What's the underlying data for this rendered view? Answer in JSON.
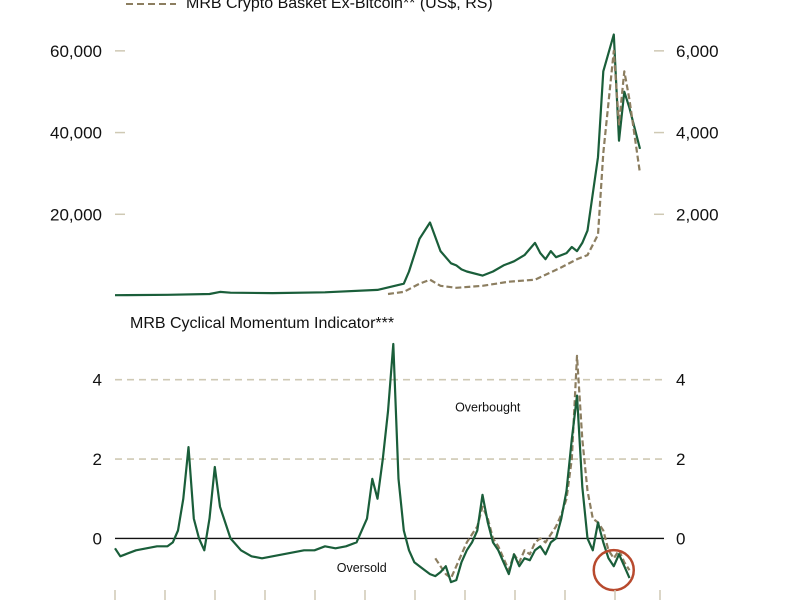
{
  "colors": {
    "bitcoin": "#1a5e3a",
    "basket": "#8c7e60",
    "gridline": "#cfc9b4",
    "zero_line": "#111111",
    "circle": "#b84a2e",
    "tick_mark": "#cfc9b4"
  },
  "chart_data": [
    {
      "type": "line",
      "panel": "top",
      "title": "",
      "legend_entries": [
        {
          "series": "basket",
          "label": "MRB Crypto Basket Ex-Bitcoin** (US$, RS)",
          "style": "dashed"
        }
      ],
      "left_axis": {
        "ylim": [
          0,
          70000
        ],
        "ticks": [
          20000,
          40000,
          60000
        ],
        "tick_labels": [
          "20,000",
          "40,000",
          "60,000"
        ]
      },
      "right_axis": {
        "ylim": [
          0,
          7000
        ],
        "ticks": [
          2000,
          4000,
          6000
        ],
        "tick_labels": [
          "2,000",
          "4,000",
          "6,000"
        ]
      },
      "xlim": [
        0,
        100
      ],
      "series": [
        {
          "key": "bitcoin",
          "axis": "left",
          "style": "solid",
          "x": [
            0,
            10,
            18,
            20,
            22,
            30,
            40,
            50,
            55,
            56,
            58,
            60,
            62,
            64,
            65,
            66,
            67,
            70,
            72,
            74,
            76,
            78,
            80,
            81,
            82,
            83,
            84,
            86,
            87,
            88,
            89,
            90,
            92,
            93,
            95,
            96,
            97,
            98,
            100
          ],
          "y": [
            200,
            300,
            500,
            1000,
            800,
            700,
            900,
            1500,
            3000,
            6000,
            14000,
            18000,
            11000,
            8000,
            7500,
            6500,
            6000,
            5000,
            6000,
            7500,
            8500,
            10000,
            13000,
            10500,
            9000,
            11000,
            9500,
            10500,
            12000,
            11000,
            13000,
            16000,
            34000,
            55000,
            64000,
            38000,
            50000,
            46000,
            36000
          ]
        },
        {
          "key": "basket",
          "axis": "right",
          "style": "dashed",
          "x": [
            52,
            55,
            58,
            60,
            62,
            65,
            70,
            75,
            80,
            85,
            88,
            90,
            92,
            93,
            95,
            96,
            97,
            98,
            100
          ],
          "y": [
            50,
            100,
            300,
            400,
            250,
            200,
            250,
            350,
            400,
            700,
            900,
            1000,
            1500,
            3500,
            6000,
            4200,
            5500,
            4800,
            3000
          ]
        }
      ]
    },
    {
      "type": "line",
      "panel": "bottom",
      "title": "MRB Cyclical Momentum Indicator***",
      "left_axis": {
        "ylim": [
          -1.3,
          5.0
        ],
        "ticks": [
          0,
          2,
          4
        ],
        "tick_labels": [
          "0",
          "2",
          "4"
        ]
      },
      "right_axis": {
        "ylim": [
          -1.3,
          5.0
        ],
        "ticks": [
          0,
          2,
          4
        ],
        "tick_labels": [
          "0",
          "2",
          "4"
        ]
      },
      "xlim": [
        0,
        100
      ],
      "reference_lines": [
        {
          "y": 4,
          "style": "dashed"
        },
        {
          "y": 2,
          "style": "dashed"
        },
        {
          "y": 0,
          "style": "solid"
        }
      ],
      "annotations": [
        {
          "text": "Overbought",
          "x": 71,
          "y": 3.2
        },
        {
          "text": "Oversold",
          "x": 47,
          "y": -0.85
        }
      ],
      "highlight_circle": {
        "x": 95,
        "y": -0.8
      },
      "series": [
        {
          "key": "bitcoin",
          "style": "solid",
          "x": [
            0,
            1,
            2,
            4,
            6,
            8,
            10,
            11,
            12,
            13,
            14,
            15,
            16,
            17,
            18,
            19,
            20,
            22,
            24,
            26,
            28,
            30,
            32,
            34,
            36,
            38,
            40,
            42,
            44,
            46,
            48,
            49,
            50,
            51,
            52,
            53,
            54,
            55,
            56,
            57,
            58,
            59,
            60,
            61,
            62,
            63,
            64,
            65,
            66,
            67,
            68,
            69,
            70,
            71,
            72,
            73,
            74,
            75,
            76,
            77,
            78,
            79,
            80,
            81,
            82,
            83,
            84,
            85,
            86,
            87,
            88,
            89,
            90,
            91,
            92,
            93,
            94,
            95,
            96,
            97,
            98
          ],
          "y": [
            -0.25,
            -0.45,
            -0.4,
            -0.3,
            -0.25,
            -0.2,
            -0.2,
            -0.1,
            0.2,
            1.0,
            2.3,
            0.5,
            0.0,
            -0.3,
            0.5,
            1.8,
            0.8,
            0.0,
            -0.3,
            -0.45,
            -0.5,
            -0.45,
            -0.4,
            -0.35,
            -0.3,
            -0.3,
            -0.2,
            -0.25,
            -0.2,
            -0.1,
            0.5,
            1.5,
            1.0,
            2.0,
            3.2,
            4.9,
            1.5,
            0.2,
            -0.3,
            -0.6,
            -0.7,
            -0.8,
            -0.9,
            -0.95,
            -0.85,
            -0.7,
            -1.1,
            -1.05,
            -0.6,
            -0.3,
            -0.1,
            0.2,
            1.1,
            0.4,
            -0.1,
            -0.3,
            -0.6,
            -0.9,
            -0.4,
            -0.7,
            -0.5,
            -0.55,
            -0.3,
            -0.2,
            -0.4,
            -0.1,
            0.0,
            0.5,
            1.2,
            2.5,
            3.6,
            1.3,
            0.0,
            -0.3,
            0.4,
            -0.1,
            -0.5,
            -0.7,
            -0.4,
            -0.7,
            -1.0
          ]
        },
        {
          "key": "basket",
          "style": "dashed",
          "x": [
            61,
            62,
            63,
            64,
            65,
            66,
            67,
            68,
            69,
            70,
            71,
            72,
            73,
            74,
            75,
            76,
            77,
            78,
            79,
            80,
            81,
            82,
            83,
            84,
            85,
            86,
            87,
            88,
            89,
            90,
            91,
            92,
            93,
            94,
            95,
            96,
            97,
            98
          ],
          "y": [
            -0.5,
            -0.7,
            -0.9,
            -1.0,
            -0.7,
            -0.4,
            -0.1,
            0.1,
            0.3,
            0.8,
            0.5,
            0.0,
            -0.2,
            -0.5,
            -0.8,
            -0.4,
            -0.6,
            -0.3,
            -0.4,
            -0.1,
            0.0,
            -0.1,
            0.1,
            0.3,
            0.6,
            1.0,
            2.0,
            4.6,
            2.5,
            1.2,
            0.5,
            0.4,
            0.2,
            -0.3,
            -0.5,
            -0.3,
            -0.6,
            -0.8
          ]
        }
      ]
    }
  ]
}
